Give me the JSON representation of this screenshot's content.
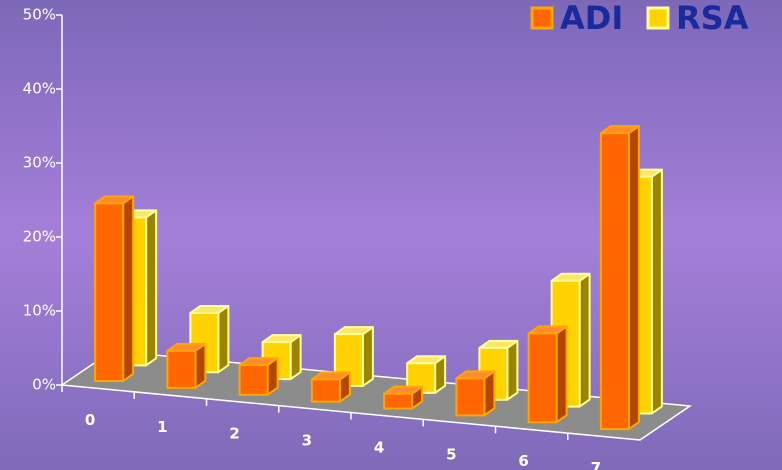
{
  "chart_data": {
    "type": "bar3d",
    "categories": [
      "0",
      "1",
      "2",
      "3",
      "4",
      "5",
      "6",
      "7"
    ],
    "series": [
      {
        "name": "ADI",
        "color": "#ff6600",
        "values": [
          24,
          5,
          4,
          3,
          2,
          5,
          12,
          40
        ]
      },
      {
        "name": "RSA",
        "color": "#ffd200",
        "values": [
          20,
          8,
          5,
          7,
          4,
          7,
          17,
          32
        ]
      }
    ],
    "ylim": [
      0,
      50
    ],
    "yticks": [
      {
        "value": 0,
        "label": "0%"
      },
      {
        "value": 10,
        "label": "10%"
      },
      {
        "value": 20,
        "label": "20%"
      },
      {
        "value": 30,
        "label": "30%"
      },
      {
        "value": 40,
        "label": "40%"
      },
      {
        "value": 50,
        "label": "50%"
      }
    ],
    "legend": "top-right"
  }
}
